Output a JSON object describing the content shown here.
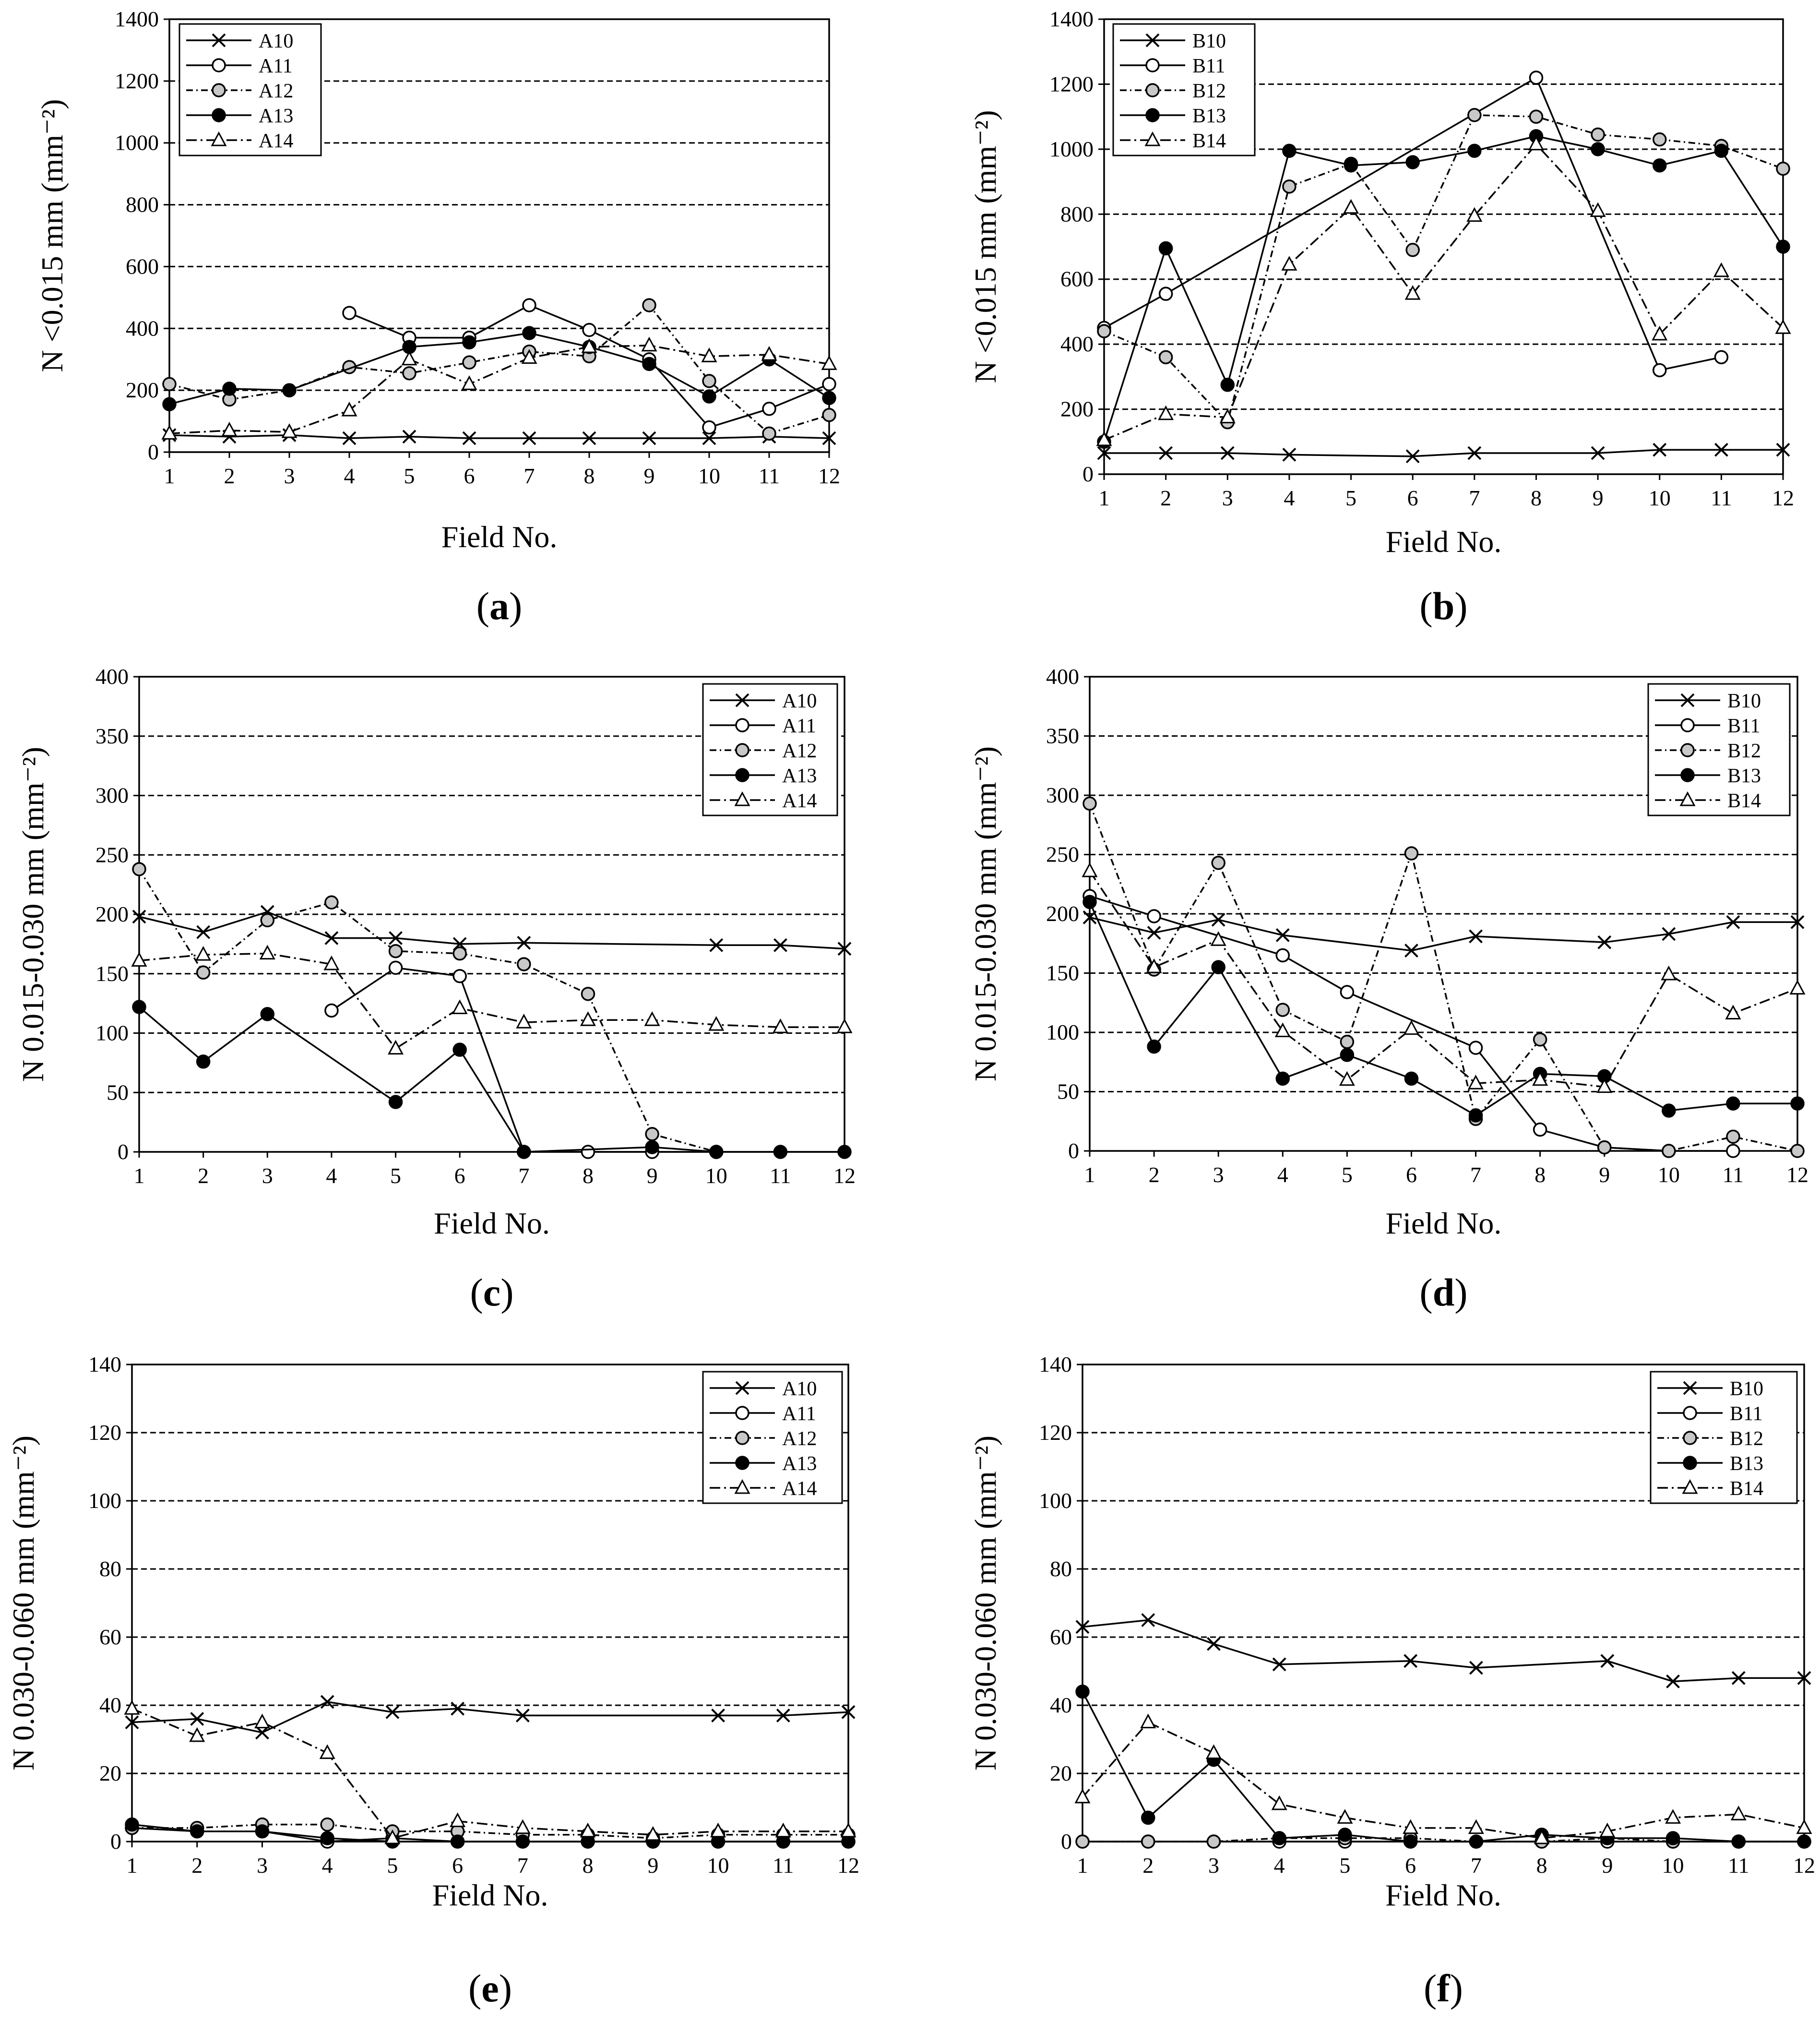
{
  "chart_data": [
    {
      "id": "a",
      "type": "line",
      "caption": "a",
      "xlabel": "Field No.",
      "ylabel": "N <0.015 mm (mm⁻²)",
      "ylim": [
        0,
        1400
      ],
      "yticks": [
        0,
        200,
        400,
        600,
        800,
        1000,
        1200,
        1400
      ],
      "x": [
        1,
        2,
        3,
        4,
        5,
        6,
        7,
        8,
        9,
        10,
        11,
        12
      ],
      "legend_position": "top-left",
      "series": [
        {
          "name": "A10",
          "values": [
            55,
            50,
            55,
            45,
            50,
            45,
            45,
            45,
            45,
            45,
            50,
            45
          ]
        },
        {
          "name": "A11",
          "values": [
            null,
            null,
            null,
            450,
            370,
            370,
            475,
            395,
            300,
            80,
            140,
            220
          ]
        },
        {
          "name": "A12",
          "values": [
            220,
            170,
            200,
            275,
            255,
            290,
            325,
            310,
            475,
            230,
            60,
            120
          ]
        },
        {
          "name": "A13",
          "values": [
            155,
            205,
            200,
            null,
            340,
            355,
            385,
            340,
            285,
            180,
            300,
            175
          ]
        },
        {
          "name": "A14",
          "values": [
            60,
            70,
            65,
            135,
            300,
            220,
            305,
            340,
            345,
            310,
            315,
            285
          ]
        }
      ]
    },
    {
      "id": "b",
      "type": "line",
      "caption": "b",
      "xlabel": "Field No.",
      "ylabel": "N <0.015 mm (mm⁻²)",
      "ylim": [
        0,
        1400
      ],
      "yticks": [
        0,
        200,
        400,
        600,
        800,
        1000,
        1200,
        1400
      ],
      "x": [
        1,
        2,
        3,
        4,
        5,
        6,
        7,
        8,
        9,
        10,
        11,
        12
      ],
      "legend_position": "top-left",
      "series": [
        {
          "name": "B10",
          "values": [
            65,
            65,
            65,
            60,
            null,
            55,
            65,
            null,
            65,
            75,
            75,
            75
          ]
        },
        {
          "name": "B11",
          "values": [
            450,
            555,
            null,
            null,
            null,
            null,
            null,
            1220,
            null,
            320,
            360,
            null
          ]
        },
        {
          "name": "B12",
          "values": [
            440,
            360,
            160,
            885,
            955,
            690,
            1105,
            1100,
            1045,
            1030,
            1010,
            940
          ]
        },
        {
          "name": "B13",
          "values": [
            100,
            695,
            275,
            995,
            950,
            960,
            995,
            1040,
            1000,
            950,
            995,
            700
          ]
        },
        {
          "name": "B14",
          "values": [
            105,
            185,
            175,
            645,
            820,
            555,
            795,
            1015,
            810,
            430,
            625,
            450
          ]
        }
      ]
    },
    {
      "id": "c",
      "type": "line",
      "caption": "c",
      "xlabel": "Field No.",
      "ylabel": "N 0.015-0.030 mm (mm⁻²)",
      "ylim": [
        0,
        400
      ],
      "yticks": [
        0,
        50,
        100,
        150,
        200,
        250,
        300,
        350,
        400
      ],
      "x": [
        1,
        2,
        3,
        4,
        5,
        6,
        7,
        8,
        9,
        10,
        11,
        12
      ],
      "legend_position": "top-right",
      "series": [
        {
          "name": "A10",
          "values": [
            198,
            185,
            202,
            180,
            180,
            175,
            176,
            null,
            null,
            174,
            174,
            171
          ]
        },
        {
          "name": "A11",
          "values": [
            null,
            null,
            null,
            119,
            155,
            148,
            0,
            0,
            0,
            0,
            null,
            null
          ]
        },
        {
          "name": "A12",
          "values": [
            238,
            151,
            195,
            210,
            169,
            167,
            158,
            133,
            15,
            0,
            null,
            null
          ]
        },
        {
          "name": "A13",
          "values": [
            122,
            76,
            116,
            null,
            42,
            86,
            0,
            null,
            4,
            0,
            0,
            0
          ]
        },
        {
          "name": "A14",
          "values": [
            161,
            166,
            167,
            158,
            87,
            121,
            109,
            111,
            111,
            107,
            105,
            105
          ]
        }
      ]
    },
    {
      "id": "d",
      "type": "line",
      "caption": "d",
      "xlabel": "Field No.",
      "ylabel": "N 0.015-0.030 mm (mm⁻²)",
      "ylim": [
        0,
        400
      ],
      "yticks": [
        0,
        50,
        100,
        150,
        200,
        250,
        300,
        350,
        400
      ],
      "x": [
        1,
        2,
        3,
        4,
        5,
        6,
        7,
        8,
        9,
        10,
        11,
        12
      ],
      "legend_position": "top-right",
      "series": [
        {
          "name": "B10",
          "values": [
            197,
            184,
            195,
            182,
            null,
            169,
            181,
            null,
            176,
            183,
            193,
            193
          ]
        },
        {
          "name": "B11",
          "values": [
            215,
            198,
            null,
            165,
            134,
            null,
            87,
            18,
            3,
            0,
            0,
            null
          ]
        },
        {
          "name": "B12",
          "values": [
            293,
            153,
            243,
            119,
            92,
            251,
            27,
            94,
            3,
            0,
            12,
            0
          ]
        },
        {
          "name": "B13",
          "values": [
            210,
            88,
            155,
            61,
            81,
            61,
            30,
            65,
            63,
            34,
            40,
            40
          ]
        },
        {
          "name": "B14",
          "values": [
            236,
            155,
            178,
            101,
            60,
            103,
            57,
            60,
            54,
            149,
            116,
            137
          ]
        }
      ]
    },
    {
      "id": "e",
      "type": "line",
      "caption": "e",
      "xlabel": "Field No.",
      "ylabel": "N 0.030-0.060 mm (mm⁻²)",
      "ylim": [
        0,
        140
      ],
      "yticks": [
        0,
        20,
        40,
        60,
        80,
        100,
        120,
        140
      ],
      "x": [
        1,
        2,
        3,
        4,
        5,
        6,
        7,
        8,
        9,
        10,
        11,
        12
      ],
      "legend_position": "top-right",
      "series": [
        {
          "name": "A10",
          "values": [
            35,
            36,
            32,
            41,
            38,
            39,
            37,
            null,
            null,
            37,
            37,
            38
          ]
        },
        {
          "name": "A11",
          "values": [
            4,
            3,
            3,
            0,
            1,
            0,
            0,
            0,
            0,
            0,
            0,
            0
          ]
        },
        {
          "name": "A12",
          "values": [
            4,
            4,
            5,
            5,
            3,
            3,
            2,
            2,
            1,
            2,
            2,
            2
          ]
        },
        {
          "name": "A13",
          "values": [
            5,
            3,
            3,
            1,
            0,
            0,
            0,
            0,
            0,
            0,
            0,
            0
          ]
        },
        {
          "name": "A14",
          "values": [
            39,
            31,
            35,
            26,
            1,
            6,
            4,
            3,
            2,
            3,
            3,
            3
          ]
        }
      ]
    },
    {
      "id": "f",
      "type": "line",
      "caption": "f",
      "xlabel": "Field No.",
      "ylabel": "N 0.030-0.060 mm (mm⁻²)",
      "ylim": [
        0,
        140
      ],
      "yticks": [
        0,
        20,
        40,
        60,
        80,
        100,
        120,
        140
      ],
      "x": [
        1,
        2,
        3,
        4,
        5,
        6,
        7,
        8,
        9,
        10,
        11,
        12
      ],
      "legend_position": "top-right",
      "series": [
        {
          "name": "B10",
          "values": [
            63,
            65,
            58,
            52,
            null,
            53,
            51,
            null,
            53,
            47,
            48,
            48
          ]
        },
        {
          "name": "B11",
          "values": [
            0,
            0,
            0,
            0,
            0,
            0,
            0,
            0,
            0,
            0,
            0,
            0
          ]
        },
        {
          "name": "B12",
          "values": [
            0,
            0,
            0,
            1,
            1,
            1,
            0,
            0,
            1,
            0,
            0,
            0
          ]
        },
        {
          "name": "B13",
          "values": [
            44,
            7,
            24,
            1,
            2,
            0,
            0,
            2,
            1,
            1,
            0,
            0
          ]
        },
        {
          "name": "B14",
          "values": [
            13,
            35,
            26,
            11,
            7,
            4,
            4,
            1,
            3,
            7,
            8,
            4
          ]
        }
      ]
    }
  ]
}
